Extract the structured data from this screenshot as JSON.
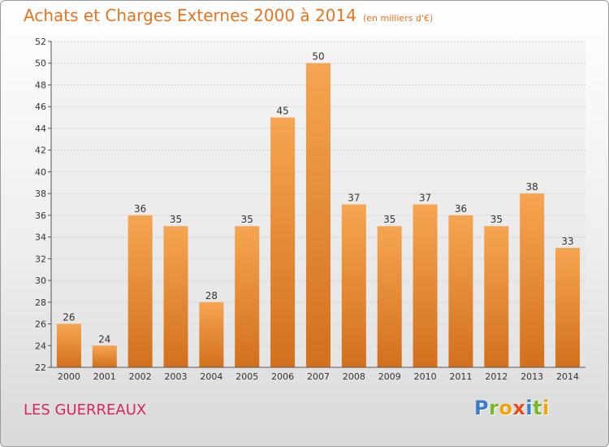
{
  "title": "Achats et Charges Externes 2000 à 2014",
  "unit": "(en milliers d'€)",
  "place": "LES GUERREAUX",
  "logo": {
    "letters": [
      {
        "ch": "P",
        "color": "#3b7ec8"
      },
      {
        "ch": "r",
        "color": "#76b82a"
      },
      {
        "ch": "o",
        "color": "#f0a30a"
      },
      {
        "ch": "x",
        "color": "#e84c1c"
      },
      {
        "ch": "i",
        "color": "#3b7ec8"
      },
      {
        "ch": "t",
        "color": "#76b82a"
      },
      {
        "ch": "i",
        "color": "#f0a30a"
      }
    ]
  },
  "colors": {
    "bar_light": "#f6a552",
    "bar_dark": "#d2701c",
    "title": "#e8731d",
    "place": "#d8285a"
  },
  "chart_data": {
    "type": "bar",
    "title": "Achats et Charges Externes 2000 à 2014",
    "subtitle": "(en milliers d'€)",
    "categories": [
      "2000",
      "2001",
      "2002",
      "2003",
      "2004",
      "2005",
      "2006",
      "2007",
      "2008",
      "2009",
      "2010",
      "2011",
      "2012",
      "2013",
      "2014"
    ],
    "values": [
      26,
      24,
      36,
      35,
      28,
      35,
      45,
      50,
      37,
      35,
      37,
      36,
      35,
      38,
      33
    ],
    "ylim": [
      22,
      52
    ],
    "yticks": [
      22,
      24,
      26,
      28,
      30,
      32,
      34,
      36,
      38,
      40,
      42,
      44,
      46,
      48,
      50,
      52
    ],
    "grid": true,
    "data_labels": true
  }
}
